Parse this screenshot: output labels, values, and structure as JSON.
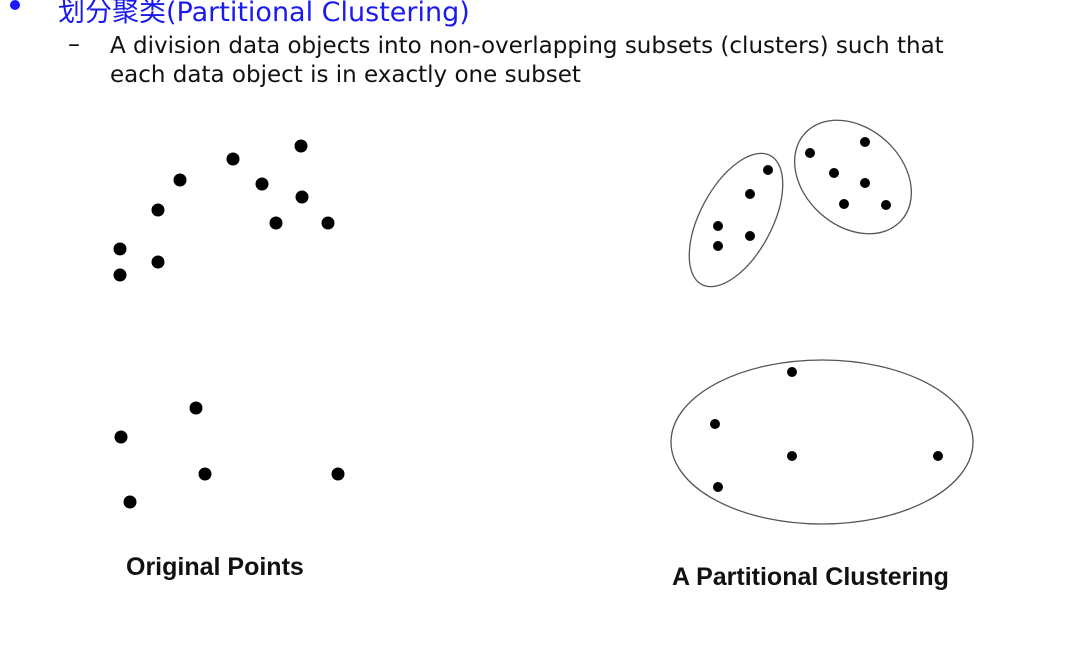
{
  "heading": {
    "text": "划分聚类(Partitional Clustering)",
    "color": "#1a1aee"
  },
  "subpoint": {
    "line1": "A division data objects into non-overlapping subsets (clusters) such that",
    "line2": "each data object is in exactly one subset"
  },
  "captions": {
    "left": "Original Points",
    "right": "A Partitional  Clustering"
  }
}
